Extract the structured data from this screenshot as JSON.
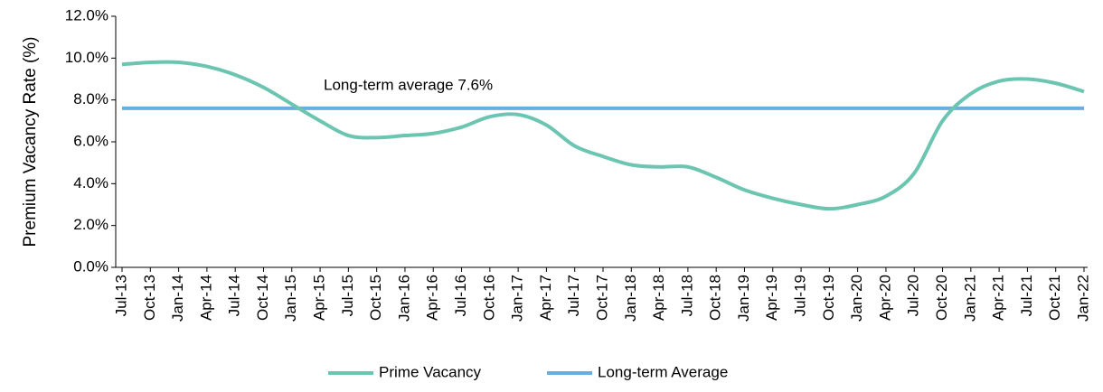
{
  "chart_data": {
    "type": "line",
    "y_label": "Premium Vacancy Rate (%)",
    "annotation": "Long-term average 7.6%",
    "categories": [
      "Jul-13",
      "Oct-13",
      "Jan-14",
      "Apr-14",
      "Jul-14",
      "Oct-14",
      "Jan-15",
      "Apr-15",
      "Jul-15",
      "Oct-15",
      "Jan-16",
      "Apr-16",
      "Jul-16",
      "Oct-16",
      "Jan-17",
      "Apr-17",
      "Jul-17",
      "Oct-17",
      "Jan-18",
      "Apr-18",
      "Jul-18",
      "Oct-18",
      "Jan-19",
      "Apr-19",
      "Jul-19",
      "Oct-19",
      "Jan-20",
      "Apr-20",
      "Jul-20",
      "Oct-20",
      "Jan-21",
      "Apr-21",
      "Jul-21",
      "Oct-21",
      "Jan-22"
    ],
    "series": [
      {
        "name": "Prime Vacancy",
        "color": "#6cc5b0",
        "values": [
          9.7,
          9.8,
          9.8,
          9.6,
          9.2,
          8.6,
          7.8,
          7.0,
          6.3,
          6.2,
          6.3,
          6.4,
          6.7,
          7.2,
          7.3,
          6.8,
          5.8,
          5.3,
          4.9,
          4.8,
          4.8,
          4.3,
          3.7,
          3.3,
          3.0,
          2.8,
          3.0,
          3.4,
          4.5,
          7.0,
          8.3,
          8.9,
          9.0,
          8.8,
          8.4
        ]
      },
      {
        "name": "Long-term Average",
        "color": "#6aaee0",
        "values": [
          7.6,
          7.6,
          7.6,
          7.6,
          7.6,
          7.6,
          7.6,
          7.6,
          7.6,
          7.6,
          7.6,
          7.6,
          7.6,
          7.6,
          7.6,
          7.6,
          7.6,
          7.6,
          7.6,
          7.6,
          7.6,
          7.6,
          7.6,
          7.6,
          7.6,
          7.6,
          7.6,
          7.6,
          7.6,
          7.6,
          7.6,
          7.6,
          7.6,
          7.6,
          7.6
        ]
      }
    ],
    "ylim": [
      0,
      12
    ],
    "yticks": [
      {
        "value": 0,
        "label": "0.0%"
      },
      {
        "value": 2,
        "label": "2.0%"
      },
      {
        "value": 4,
        "label": "4.0%"
      },
      {
        "value": 6,
        "label": "6.0%"
      },
      {
        "value": 8,
        "label": "8.0%"
      },
      {
        "value": 10,
        "label": "10.0%"
      },
      {
        "value": 12,
        "label": "12.0%"
      }
    ],
    "grid": false,
    "smooth": true,
    "legend": "bottom"
  }
}
